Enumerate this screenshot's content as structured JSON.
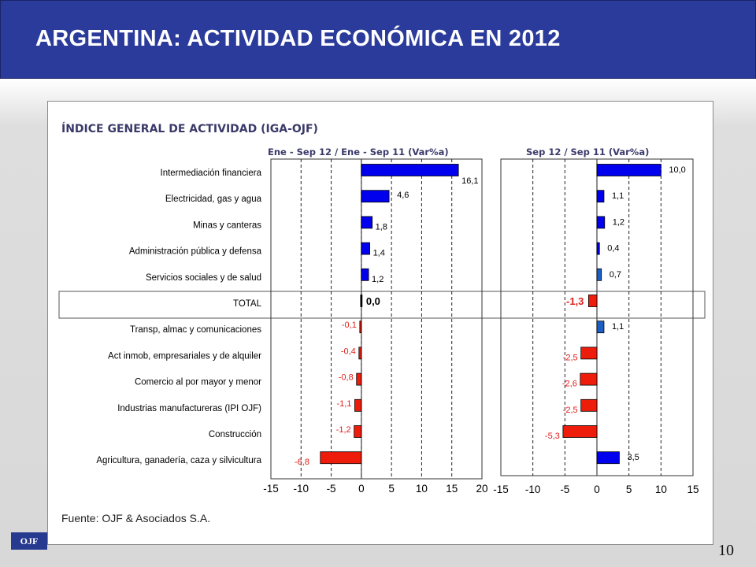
{
  "header": {
    "title": "ARGENTINA: ACTIVIDAD ECONÓMICA EN 2012"
  },
  "subtitle": "ÍNDICE GENERAL DE ACTIVIDAD (IGA-OJF)",
  "source": "Fuente: OJF & Asociados S.A.",
  "logo_text": "OJF",
  "page_number": "10",
  "colors": {
    "positive": "#0000ee",
    "positive_right": "#1c5fc4",
    "negative": "#ee1c0a",
    "negative_label": "#e0201c",
    "total_bar": "#000000"
  },
  "chart_data": [
    {
      "type": "bar",
      "orientation": "horizontal",
      "title": "Ene - Sep 12 / Ene - Sep 11 (Var%a)",
      "categories": [
        "Intermediación financiera",
        "Electricidad, gas y agua",
        "Minas y canteras",
        "Administración pública y defensa",
        "Servicios sociales y de salud",
        "TOTAL",
        "Transp, almac y comunicaciones",
        "Act inmob, empresariales y de alquiler",
        "Comercio al por mayor y menor",
        "Industrias manufactureras (IPI OJF)",
        "Construcción",
        "Agricultura, ganadería, caza y silvicultura"
      ],
      "values": [
        16.1,
        4.6,
        1.8,
        1.4,
        1.2,
        0.0,
        -0.1,
        -0.4,
        -0.8,
        -1.1,
        -1.2,
        -6.8
      ],
      "value_labels": [
        "16,1",
        "4,6",
        "1,8",
        "1,4",
        "1,2",
        "0,0",
        "-0,1",
        "-0,4",
        "-0,8",
        "-1,1",
        "-1,2",
        "-6,8"
      ],
      "xlim": [
        -15,
        20
      ],
      "xticks": [
        "-15",
        "-10",
        "-5",
        "0",
        "5",
        "10",
        "15",
        "20"
      ],
      "grid": "vertical dashed"
    },
    {
      "type": "bar",
      "orientation": "horizontal",
      "title": "Sep 12 / Sep 11 (Var%a)",
      "categories": [
        "Intermediación financiera",
        "Electricidad, gas y agua",
        "Minas y canteras",
        "Administración pública y defensa",
        "Servicios sociales y de salud",
        "TOTAL",
        "Transp, almac y comunicaciones",
        "Act inmob, empresariales y de alquiler",
        "Comercio al por mayor y menor",
        "Industrias manufactureras (IPI OJF)",
        "Construcción",
        "Agricultura, ganadería, caza y silvicultura"
      ],
      "values": [
        10.0,
        1.1,
        1.2,
        0.4,
        0.7,
        -1.3,
        1.1,
        -2.5,
        -2.6,
        -2.5,
        -5.3,
        3.5
      ],
      "value_labels": [
        "10,0",
        "1,1",
        "1,2",
        "0,4",
        "0,7",
        "-1,3",
        "1,1",
        "-2,5",
        "-2,6",
        "-2,5",
        "-5,3",
        "3,5"
      ],
      "xlim": [
        -15,
        15
      ],
      "xticks": [
        "-15",
        "-10",
        "-5",
        "0",
        "5",
        "10",
        "15"
      ],
      "grid": "vertical dashed"
    }
  ]
}
